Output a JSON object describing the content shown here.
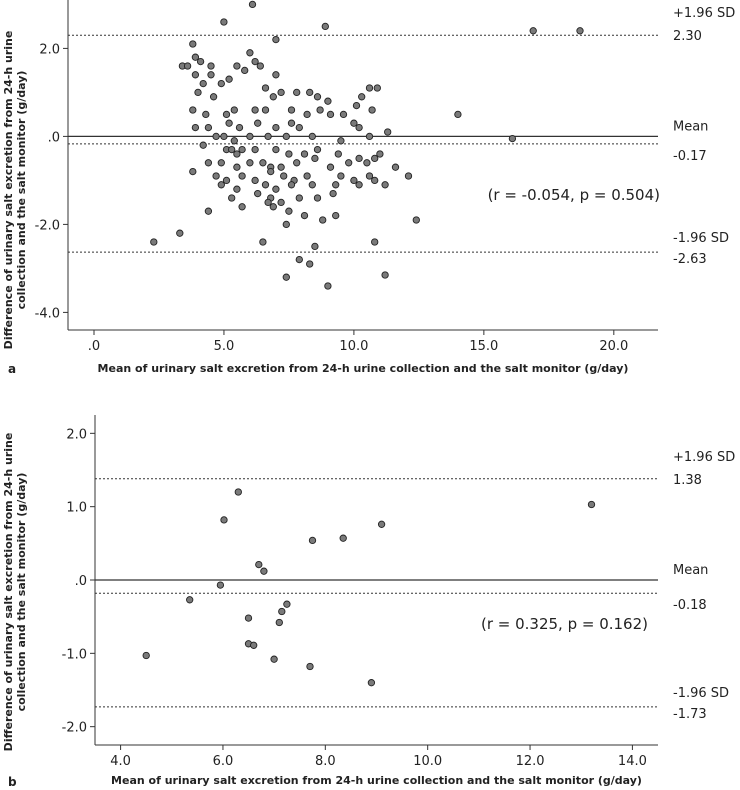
{
  "chart_data": [
    {
      "panel_label": "a",
      "type": "scatter",
      "xlabel": "Mean of urinary salt excretion from 24-h urine collection and the salt monitor (g/day)",
      "ylabel_line1": "Difference of urinary salt excretion from 24-h urine",
      "ylabel_line2": "collection and the salt monitor (g/day)",
      "xlim": [
        -1.0,
        21.7
      ],
      "ylim": [
        -4.4,
        3.1
      ],
      "x_ticks": [
        0,
        5,
        10,
        15,
        20
      ],
      "x_tick_labels": [
        ".0",
        "5.0",
        "10.0",
        "15.0",
        "20.0"
      ],
      "y_ticks": [
        2,
        0,
        -2,
        -4
      ],
      "y_tick_labels": [
        "2.0",
        ".0",
        "-2.0",
        "-4.0"
      ],
      "zero_line": 0.0,
      "mean": {
        "value": -0.17,
        "label": "Mean",
        "value_label": "-0.17"
      },
      "upper_loa": {
        "value": 2.3,
        "label": "+1.96 SD",
        "value_label": "2.30"
      },
      "lower_loa": {
        "value": -2.63,
        "label": "-1.96 SD",
        "value_label": "-2.63"
      },
      "correlation_text": "(r = -0.054, p = 0.504)",
      "points": [
        [
          6.1,
          3.0
        ],
        [
          5.0,
          2.6
        ],
        [
          8.9,
          2.5
        ],
        [
          7.0,
          2.2
        ],
        [
          16.9,
          2.4
        ],
        [
          18.7,
          2.4
        ],
        [
          3.8,
          2.1
        ],
        [
          3.9,
          1.8
        ],
        [
          4.1,
          1.7
        ],
        [
          3.4,
          1.6
        ],
        [
          3.6,
          1.6
        ],
        [
          4.5,
          1.6
        ],
        [
          6.0,
          1.9
        ],
        [
          6.2,
          1.7
        ],
        [
          5.5,
          1.6
        ],
        [
          5.8,
          1.5
        ],
        [
          6.4,
          1.6
        ],
        [
          7.0,
          1.4
        ],
        [
          3.9,
          1.4
        ],
        [
          4.2,
          1.2
        ],
        [
          4.5,
          1.4
        ],
        [
          4.9,
          1.2
        ],
        [
          4.0,
          1.0
        ],
        [
          4.6,
          0.9
        ],
        [
          5.2,
          1.3
        ],
        [
          6.6,
          1.1
        ],
        [
          6.9,
          0.9
        ],
        [
          7.2,
          1.0
        ],
        [
          7.8,
          1.0
        ],
        [
          8.3,
          1.0
        ],
        [
          8.6,
          0.9
        ],
        [
          9.0,
          0.8
        ],
        [
          10.3,
          0.9
        ],
        [
          10.6,
          1.1
        ],
        [
          10.9,
          1.1
        ],
        [
          10.1,
          0.7
        ],
        [
          3.8,
          0.6
        ],
        [
          4.3,
          0.5
        ],
        [
          5.1,
          0.5
        ],
        [
          5.4,
          0.6
        ],
        [
          6.2,
          0.6
        ],
        [
          6.6,
          0.6
        ],
        [
          7.6,
          0.6
        ],
        [
          8.2,
          0.5
        ],
        [
          8.7,
          0.6
        ],
        [
          9.1,
          0.5
        ],
        [
          9.6,
          0.5
        ],
        [
          10.7,
          0.6
        ],
        [
          14.0,
          0.5
        ],
        [
          3.9,
          0.2
        ],
        [
          4.4,
          0.2
        ],
        [
          5.2,
          0.3
        ],
        [
          5.6,
          0.2
        ],
        [
          6.3,
          0.3
        ],
        [
          7.0,
          0.2
        ],
        [
          7.6,
          0.3
        ],
        [
          7.9,
          0.2
        ],
        [
          10.0,
          0.3
        ],
        [
          10.2,
          0.2
        ],
        [
          11.3,
          0.1
        ],
        [
          4.7,
          0.0
        ],
        [
          5.0,
          0.0
        ],
        [
          5.4,
          -0.1
        ],
        [
          6.0,
          0.0
        ],
        [
          6.7,
          0.0
        ],
        [
          7.4,
          0.0
        ],
        [
          8.4,
          0.0
        ],
        [
          9.5,
          -0.1
        ],
        [
          10.6,
          0.0
        ],
        [
          16.1,
          -0.05
        ],
        [
          4.2,
          -0.2
        ],
        [
          5.1,
          -0.3
        ],
        [
          5.3,
          -0.3
        ],
        [
          5.5,
          -0.4
        ],
        [
          5.7,
          -0.3
        ],
        [
          6.2,
          -0.3
        ],
        [
          7.0,
          -0.3
        ],
        [
          7.5,
          -0.4
        ],
        [
          8.1,
          -0.4
        ],
        [
          8.6,
          -0.3
        ],
        [
          9.4,
          -0.4
        ],
        [
          10.2,
          -0.5
        ],
        [
          11.0,
          -0.4
        ],
        [
          4.4,
          -0.6
        ],
        [
          4.9,
          -0.6
        ],
        [
          5.5,
          -0.7
        ],
        [
          6.0,
          -0.6
        ],
        [
          6.5,
          -0.6
        ],
        [
          6.8,
          -0.7
        ],
        [
          7.2,
          -0.7
        ],
        [
          7.8,
          -0.6
        ],
        [
          8.5,
          -0.5
        ],
        [
          9.1,
          -0.7
        ],
        [
          9.8,
          -0.6
        ],
        [
          10.5,
          -0.6
        ],
        [
          10.8,
          -0.5
        ],
        [
          11.6,
          -0.7
        ],
        [
          3.8,
          -0.8
        ],
        [
          4.7,
          -0.9
        ],
        [
          5.1,
          -1.0
        ],
        [
          5.7,
          -0.9
        ],
        [
          6.2,
          -1.0
        ],
        [
          6.8,
          -0.8
        ],
        [
          7.3,
          -0.9
        ],
        [
          7.7,
          -1.0
        ],
        [
          8.2,
          -0.9
        ],
        [
          9.5,
          -0.9
        ],
        [
          10.0,
          -1.0
        ],
        [
          10.6,
          -0.9
        ],
        [
          12.1,
          -0.9
        ],
        [
          4.9,
          -1.1
        ],
        [
          5.5,
          -1.2
        ],
        [
          6.6,
          -1.1
        ],
        [
          7.0,
          -1.2
        ],
        [
          7.6,
          -1.1
        ],
        [
          8.4,
          -1.1
        ],
        [
          9.3,
          -1.1
        ],
        [
          10.2,
          -1.1
        ],
        [
          10.8,
          -1.0
        ],
        [
          11.2,
          -1.1
        ],
        [
          5.3,
          -1.4
        ],
        [
          6.3,
          -1.3
        ],
        [
          6.8,
          -1.4
        ],
        [
          7.2,
          -1.5
        ],
        [
          7.9,
          -1.4
        ],
        [
          8.6,
          -1.4
        ],
        [
          9.2,
          -1.3
        ],
        [
          6.7,
          -1.5
        ],
        [
          4.4,
          -1.7
        ],
        [
          5.7,
          -1.6
        ],
        [
          6.9,
          -1.6
        ],
        [
          7.5,
          -1.7
        ],
        [
          8.1,
          -1.8
        ],
        [
          7.4,
          -2.0
        ],
        [
          8.8,
          -1.9
        ],
        [
          9.3,
          -1.8
        ],
        [
          12.4,
          -1.9
        ],
        [
          3.3,
          -2.2
        ],
        [
          2.3,
          -2.4
        ],
        [
          6.5,
          -2.4
        ],
        [
          10.8,
          -2.4
        ],
        [
          8.5,
          -2.5
        ],
        [
          7.9,
          -2.8
        ],
        [
          8.3,
          -2.9
        ],
        [
          7.4,
          -3.2
        ],
        [
          11.2,
          -3.15
        ],
        [
          9.0,
          -3.4
        ]
      ]
    },
    {
      "panel_label": "b",
      "type": "scatter",
      "xlabel": "Mean of urinary salt excretion from 24-h urine collection and the salt monitor (g/day)",
      "ylabel_line1": "Difference of urinary salt excretion from 24-h urine",
      "ylabel_line2": "collection and the salt monitor (g/day)",
      "xlim": [
        3.5,
        14.5
      ],
      "ylim": [
        -2.25,
        2.25
      ],
      "x_ticks": [
        4,
        6,
        8,
        10,
        12,
        14
      ],
      "x_tick_labels": [
        "4.0",
        "6.0",
        "8.0",
        "10.0",
        "12.0",
        "14.0"
      ],
      "y_ticks": [
        2,
        1,
        0,
        -1,
        -2
      ],
      "y_tick_labels": [
        "2.0",
        "1.0",
        ".0",
        "-1.0",
        "-2.0"
      ],
      "zero_line": 0.0,
      "mean": {
        "value": -0.18,
        "label": "Mean",
        "value_label": "-0.18"
      },
      "upper_loa": {
        "value": 1.38,
        "label": "+1.96 SD",
        "value_label": "1.38"
      },
      "lower_loa": {
        "value": -1.73,
        "label": "-1.96 SD",
        "value_label": "-1.73"
      },
      "correlation_text": "(r = 0.325, p = 0.162)",
      "points": [
        [
          4.5,
          -1.03
        ],
        [
          5.35,
          -0.27
        ],
        [
          5.95,
          -0.07
        ],
        [
          6.02,
          0.82
        ],
        [
          6.3,
          1.2
        ],
        [
          6.5,
          -0.52
        ],
        [
          6.5,
          -0.87
        ],
        [
          6.6,
          -0.89
        ],
        [
          6.7,
          0.21
        ],
        [
          6.8,
          0.12
        ],
        [
          7.0,
          -1.08
        ],
        [
          7.1,
          -0.58
        ],
        [
          7.15,
          -0.43
        ],
        [
          7.25,
          -0.33
        ],
        [
          7.7,
          -1.18
        ],
        [
          7.75,
          0.54
        ],
        [
          8.35,
          0.57
        ],
        [
          8.9,
          -1.4
        ],
        [
          9.1,
          0.76
        ],
        [
          13.2,
          1.03
        ]
      ]
    }
  ]
}
